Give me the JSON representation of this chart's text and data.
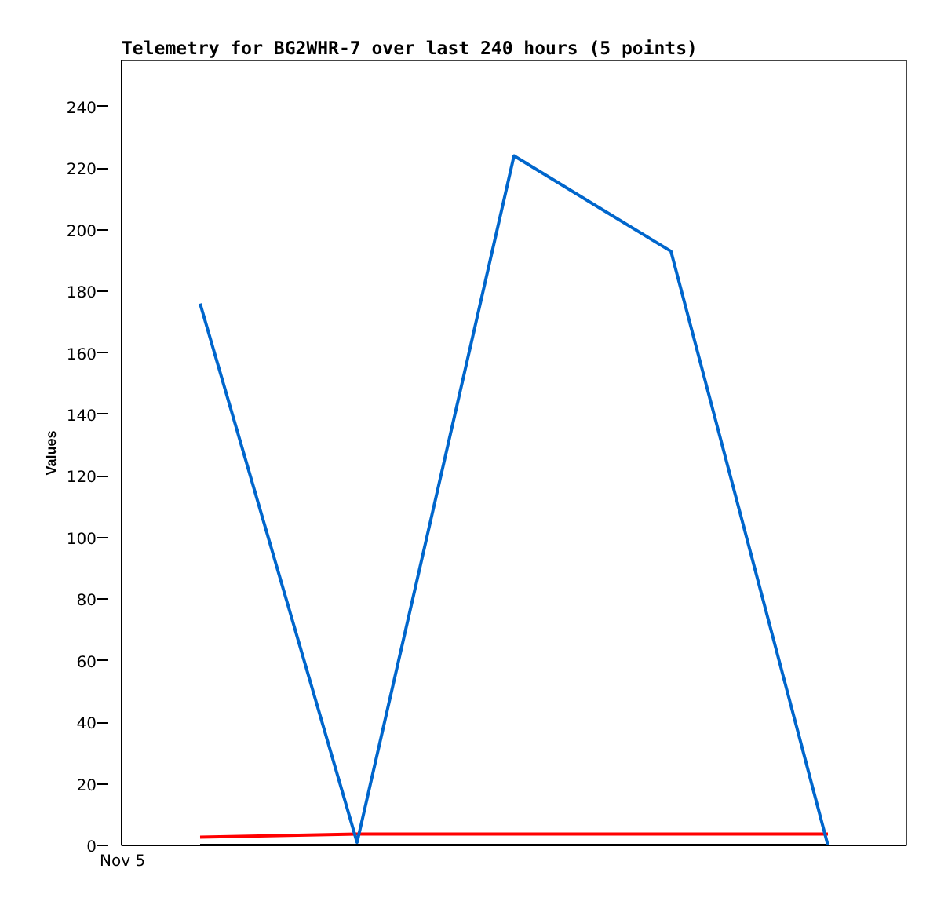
{
  "chart_data": {
    "type": "line",
    "title": "Telemetry for BG2WHR-7 over last 240 hours (5 points)",
    "ylabel": "Values",
    "annotations": [
      "Nov 5"
    ],
    "categories": [
      null,
      null,
      null,
      null,
      null
    ],
    "ylim": [
      0,
      255
    ],
    "yticks": [
      0,
      20,
      40,
      60,
      80,
      100,
      120,
      140,
      160,
      180,
      200,
      220,
      240
    ],
    "grid": false,
    "marker": "none",
    "line_style": "solid",
    "series": [
      {
        "color": "#000000",
        "values": [
          0,
          0,
          0,
          0,
          0
        ]
      },
      {
        "color": "#ff0000",
        "values": [
          2.7,
          3.7,
          3.7,
          3.7,
          3.7
        ]
      },
      {
        "color": "#0066cc",
        "values": [
          176,
          1,
          224,
          193,
          0
        ]
      }
    ]
  }
}
